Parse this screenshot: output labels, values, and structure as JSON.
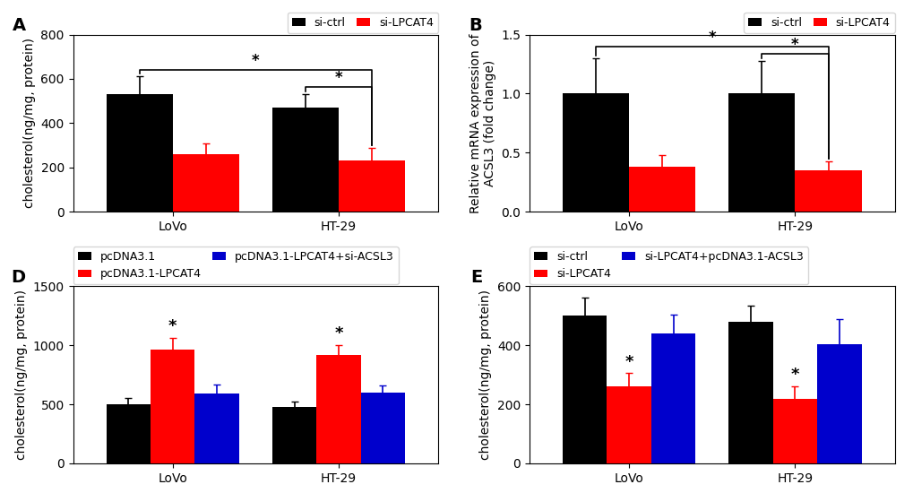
{
  "chart_data": [
    {
      "type": "bar",
      "title": "A",
      "categories": [
        "LoVo",
        "HT-29"
      ],
      "ylabel": "cholesterol(ng/mg, protein)",
      "series": [
        {
          "name": "si-ctrl",
          "color": "#000000",
          "values": [
            530,
            470
          ],
          "errors": [
            80,
            60
          ]
        },
        {
          "name": "si-LPCAT4",
          "color": "#FF0000",
          "values": [
            260,
            230
          ],
          "errors": [
            50,
            60
          ]
        }
      ],
      "ylim": [
        0,
        800
      ],
      "yticks": [
        0,
        200,
        400,
        600,
        800
      ],
      "legend": "upper right",
      "annotations": [
        {
          "text": "*",
          "from": {
            "category": "LoVo",
            "series": "si-ctrl"
          },
          "to": {
            "category": "HT-29",
            "series": "si-LPCAT4"
          }
        },
        {
          "text": "*",
          "from": {
            "category": "HT-29",
            "series": "si-ctrl"
          },
          "to": {
            "category": "HT-29",
            "series": "si-LPCAT4"
          }
        }
      ]
    },
    {
      "type": "bar",
      "title": "B",
      "categories": [
        "LoVo",
        "HT-29"
      ],
      "ylabel": "Relative mRNA expression of\nACSL3 (fold change)",
      "series": [
        {
          "name": "si-ctrl",
          "color": "#000000",
          "values": [
            1.0,
            1.0
          ],
          "errors": [
            0.3,
            0.28
          ]
        },
        {
          "name": "si-LPCAT4",
          "color": "#FF0000",
          "values": [
            0.38,
            0.35
          ],
          "errors": [
            0.1,
            0.08
          ]
        }
      ],
      "ylim": [
        0,
        1.5
      ],
      "yticks": [
        {
          "value": 0,
          "label": "0.0"
        },
        {
          "value": 0.5,
          "label": "0.5"
        },
        {
          "value": 1,
          "label": "1.0"
        },
        {
          "value": 1.5,
          "label": "1.5"
        }
      ],
      "legend": "upper right",
      "annotations": [
        {
          "text": "*",
          "from": {
            "category": "LoVo",
            "series": "si-ctrl"
          },
          "to": {
            "category": "HT-29",
            "series": "si-LPCAT4"
          }
        },
        {
          "text": "*",
          "from": {
            "category": "HT-29",
            "series": "si-ctrl"
          },
          "to": {
            "category": "HT-29",
            "series": "si-LPCAT4"
          }
        }
      ]
    },
    {
      "type": "bar",
      "title": "D",
      "categories": [
        "LoVo",
        "HT-29"
      ],
      "ylabel": "cholesterol(ng/mg, protein)",
      "series": [
        {
          "name": "pcDNA3.1",
          "color": "#000000",
          "values": [
            500,
            480
          ],
          "errors": [
            55,
            45
          ]
        },
        {
          "name": "pcDNA3.1-LPCAT4",
          "color": "#FF0000",
          "values": [
            960,
            920
          ],
          "errors": [
            100,
            80
          ]
        },
        {
          "name": "pcDNA3.1-LPCAT4+si-ACSL3",
          "color": "#0000CC",
          "values": [
            590,
            600
          ],
          "errors": [
            75,
            60
          ]
        }
      ],
      "ylim": [
        0,
        1500
      ],
      "yticks": [
        0,
        500,
        1000,
        1500
      ],
      "legend": "upper left",
      "annotations": [
        {
          "text": "*",
          "category": "LoVo",
          "series": "pcDNA3.1-LPCAT4"
        },
        {
          "text": "*",
          "category": "HT-29",
          "series": "pcDNA3.1-LPCAT4"
        }
      ]
    },
    {
      "type": "bar",
      "title": "E",
      "categories": [
        "LoVo",
        "HT-29"
      ],
      "ylabel": "cholesterol(ng/mg, protein)",
      "series": [
        {
          "name": "si-ctrl",
          "color": "#000000",
          "values": [
            500,
            480
          ],
          "errors": [
            60,
            55
          ]
        },
        {
          "name": "si-LPCAT4",
          "color": "#FF0000",
          "values": [
            260,
            220
          ],
          "errors": [
            45,
            40
          ]
        },
        {
          "name": "si-LPCAT4+pcDNA3.1-ACSL3",
          "color": "#0000CC",
          "values": [
            440,
            405
          ],
          "errors": [
            65,
            85
          ]
        }
      ],
      "ylim": [
        0,
        600
      ],
      "yticks": [
        0,
        200,
        400,
        600
      ],
      "legend": "upper left",
      "annotations": [
        {
          "text": "*",
          "category": "LoVo",
          "series": "si-LPCAT4"
        },
        {
          "text": "*",
          "category": "HT-29",
          "series": "si-LPCAT4"
        }
      ]
    }
  ]
}
